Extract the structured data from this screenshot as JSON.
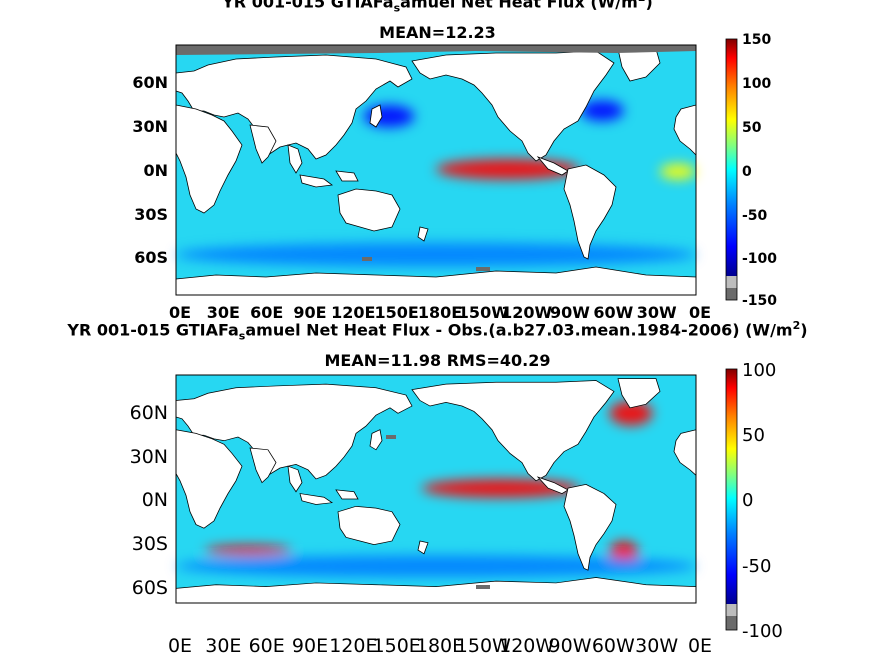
{
  "chart_data": [
    {
      "type": "heatmap",
      "title": {
        "prefix": "YR 001-015 GTIAFa",
        "sub": "s",
        "rest": "amuel  Net Heat Flux (W/m",
        "sup": "2",
        "end": ")"
      },
      "subtitle": "MEAN=12.23",
      "x_ticks": [
        "0E",
        "30E",
        "60E",
        "90E",
        "120E",
        "150E",
        "180E",
        "150W",
        "120W",
        "90W",
        "60W",
        "30W",
        "0E"
      ],
      "y_ticks": [
        "60N",
        "30N",
        "0N",
        "30S",
        "60S"
      ],
      "colorbar": {
        "min": -150,
        "max": 150,
        "ticks": [
          "150",
          "100",
          "50",
          "0",
          "-50",
          "-100",
          "-150"
        ]
      },
      "grid": false,
      "legend": "colorbar-right",
      "regions": [
        {
          "name": "equatorial-pacific-cold-tongue",
          "lon": [
            180,
            280
          ],
          "lat": [
            -5,
            8
          ],
          "value": 130
        },
        {
          "name": "equatorial-atlantic",
          "lon": [
            335,
            360
          ],
          "lat": [
            -5,
            5
          ],
          "value": 40
        },
        {
          "name": "kuroshio",
          "lon": [
            130,
            165
          ],
          "lat": [
            28,
            42
          ],
          "value": -120
        },
        {
          "name": "gulf-stream",
          "lon": [
            280,
            310
          ],
          "lat": [
            32,
            45
          ],
          "value": -120
        },
        {
          "name": "southern-ocean",
          "lon": [
            0,
            360
          ],
          "lat": [
            -60,
            -45
          ],
          "value": -70
        }
      ]
    },
    {
      "type": "heatmap",
      "title": {
        "prefix": "YR 001-015 GTIAFa",
        "sub": "s",
        "rest": "amuel  Net Heat Flux - Obs.(a.b27.03.mean.1984-2006) (W/m",
        "sup": "2",
        "end": ")"
      },
      "subtitle": "MEAN=11.98 RMS=40.29",
      "x_ticks": [
        "0E",
        "30E",
        "60E",
        "90E",
        "120E",
        "150E",
        "180E",
        "150W",
        "120W",
        "90W",
        "60W",
        "30W",
        "0E"
      ],
      "y_ticks": [
        "60N",
        "30N",
        "0N",
        "30S",
        "60S"
      ],
      "colorbar": {
        "min": -100,
        "max": 100,
        "ticks": [
          "100",
          "50",
          "0",
          "-50",
          "-100"
        ]
      },
      "grid": false,
      "legend": "colorbar-right",
      "regions": [
        {
          "name": "equatorial-pacific",
          "lon": [
            170,
            280
          ],
          "lat": [
            -5,
            8
          ],
          "value": 85
        },
        {
          "name": "brazil-malvinas",
          "lon": [
            300,
            320
          ],
          "lat": [
            -50,
            -35
          ],
          "value": 85
        },
        {
          "name": "north-atlantic-labrador",
          "lon": [
            300,
            330
          ],
          "lat": [
            45,
            62
          ],
          "value": 80
        },
        {
          "name": "agulhas-return",
          "lon": [
            20,
            80
          ],
          "lat": [
            -45,
            -38
          ],
          "value": 80
        },
        {
          "name": "southern-ocean",
          "lon": [
            0,
            360
          ],
          "lat": [
            -60,
            -45
          ],
          "value": -60
        }
      ]
    }
  ],
  "colors": {
    "ocean_base": "#27d7f2",
    "land": "#ffffff",
    "sea_ice": "#6b6b6b",
    "colormap": [
      "#00008f",
      "#0000ff",
      "#0080ff",
      "#00ffff",
      "#80ff80",
      "#ffff00",
      "#ff8000",
      "#ff0000",
      "#800000"
    ]
  }
}
